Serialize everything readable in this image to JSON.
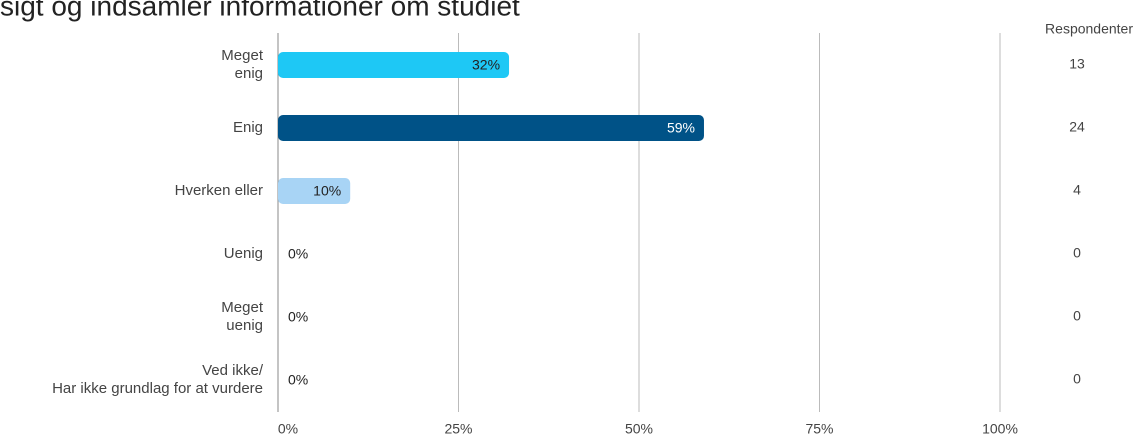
{
  "chart_data": {
    "type": "barh",
    "title": "sigt og indsamler informationer om studiet",
    "categories": [
      "Meget\nenig",
      "Enig",
      "Hverken eller",
      "Uenig",
      "Meget\nuenig",
      "Ved ikke/\nHar ikke grundlag for at vurdere"
    ],
    "values": [
      32,
      59,
      10,
      0,
      0,
      0
    ],
    "value_labels": [
      "32%",
      "59%",
      "10%",
      "0%",
      "0%",
      "0%"
    ],
    "colors": [
      "#1ec8f5",
      "#005287",
      "#a8d4f5",
      "#a8d4f5",
      "#a8d4f5",
      "#a8d4f5"
    ],
    "xlim": [
      0,
      100
    ],
    "xticks": [
      {
        "value": 0,
        "label": "0%"
      },
      {
        "value": 25,
        "label": "25%"
      },
      {
        "value": 50,
        "label": "50%"
      },
      {
        "value": 75,
        "label": "75%"
      },
      {
        "value": 100,
        "label": "100%"
      }
    ],
    "grid": true,
    "respondents_header": "Respondenter",
    "respondents": [
      13,
      24,
      4,
      0,
      0,
      0
    ]
  }
}
